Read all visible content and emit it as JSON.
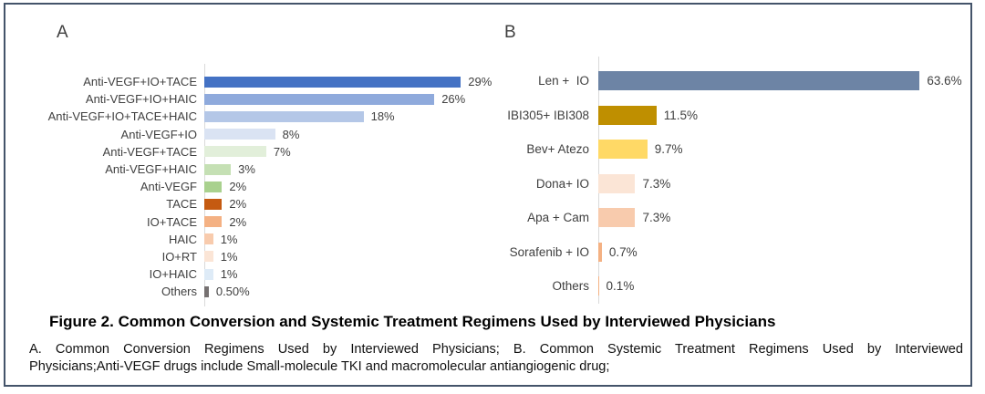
{
  "figure": {
    "panel_a_label": "A",
    "panel_b_label": "B",
    "caption_title": "Figure 2. Common Conversion and Systemic Treatment Regimens Used by Interviewed Physicians",
    "caption_line1": "A. Common Conversion Regimens Used by Interviewed Physicians; B. Common Systemic Treatment Regimens Used by Interviewed",
    "caption_line2": "Physicians;Anti-VEGF drugs include Small-molecule TKI and macromolecular antiangiogenic drug;"
  },
  "colors": {
    "border": "#44546A",
    "axis": "#D9D9D9",
    "label_text": "#404040"
  },
  "chart_data": [
    {
      "type": "bar",
      "orientation": "horizontal",
      "panel": "A",
      "title": "Common Conversion Regimens Used by Interviewed Physicians",
      "xlim": [
        0,
        30
      ],
      "grid": false,
      "legend": false,
      "categories": [
        "Anti-VEGF+IO+TACE",
        "Anti-VEGF+IO+HAIC",
        "Anti-VEGF+IO+TACE+HAIC",
        "Anti-VEGF+IO",
        "Anti-VEGF+TACE",
        "Anti-VEGF+HAIC",
        "Anti-VEGF",
        "TACE",
        "IO+TACE",
        "HAIC",
        "IO+RT",
        "IO+HAIC",
        "Others"
      ],
      "values": [
        29,
        26,
        18,
        8,
        7,
        3,
        2,
        2,
        2,
        1,
        1,
        1,
        0.5
      ],
      "value_labels": [
        "29%",
        "26%",
        "18%",
        "8%",
        "7%",
        "3%",
        "2%",
        "2%",
        "2%",
        "1%",
        "1%",
        "1%",
        "0.50%"
      ],
      "bar_colors": [
        "#4472C4",
        "#8FAADC",
        "#B4C7E7",
        "#DAE3F3",
        "#E2EFDA",
        "#C5E0B4",
        "#A9D18E",
        "#C55A11",
        "#F4B183",
        "#F8CBAD",
        "#FBE5D6",
        "#DEEBF7",
        "#767171"
      ]
    },
    {
      "type": "bar",
      "orientation": "horizontal",
      "panel": "B",
      "title": "Common Systemic Treatment Regimens Used by Interviewed Physicians",
      "xlim": [
        0,
        70
      ],
      "grid": false,
      "legend": false,
      "categories": [
        "Len +  IO",
        "IBI305+ IBI308",
        "Bev+ Atezo",
        "Dona+ IO",
        "Apa + Cam",
        "Sorafenib + IO",
        "Others"
      ],
      "values": [
        63.6,
        11.5,
        9.7,
        7.3,
        7.3,
        0.7,
        0.1
      ],
      "value_labels": [
        "63.6%",
        "11.5%",
        "9.7%",
        "7.3%",
        "7.3%",
        "0.7%",
        "0.1%"
      ],
      "bar_colors": [
        "#6D84A5",
        "#BF8F00",
        "#FFD966",
        "#FBE5D6",
        "#F8CBAD",
        "#F4B183",
        "#F4B183"
      ]
    }
  ]
}
